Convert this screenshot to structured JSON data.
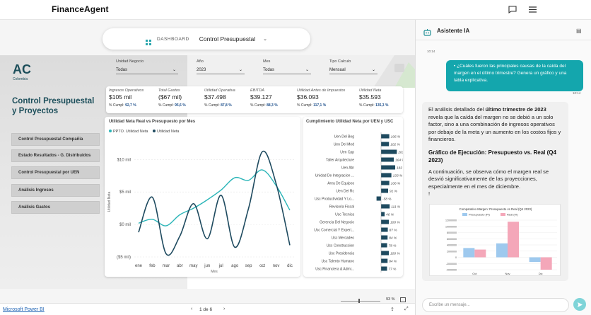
{
  "app": {
    "brand": "FinanceAgent"
  },
  "header_pill": {
    "section": "DASHBOARD",
    "title": "Control Presupuestal"
  },
  "report": {
    "logo": "AC",
    "logo_sub": "Colombia",
    "title": "Control Presupuestal y Proyectos",
    "nav": [
      "Control Presupuestal Compañia",
      "Estado Resultados - G. Distribuidos",
      "Control Presupuestal por UEN",
      "Análisis Ingresos",
      "Análisis Gastos"
    ],
    "filters": [
      {
        "label": "Unidad Negocio",
        "value": "Todas"
      },
      {
        "label": "Año",
        "value": "2023"
      },
      {
        "label": "Mes",
        "value": "Todas"
      },
      {
        "label": "Tipo Calculo",
        "value": "Mensual"
      }
    ],
    "kpis": [
      {
        "label": "Ingresos Operativos",
        "value": "$105 mil",
        "cumpl_label": "% Cumpl:",
        "cumpl": "92,7 %"
      },
      {
        "label": "Total Gastos",
        "value": "($67 mil)",
        "cumpl_label": "% Cumpl:",
        "cumpl": "95,6 %"
      },
      {
        "label": "Utilidad Operativa",
        "value": "$37.498",
        "cumpl_label": "% Cumpl:",
        "cumpl": "87,8 %"
      },
      {
        "label": "EBITDA",
        "value": "$39.127",
        "cumpl_label": "% Cumpl:",
        "cumpl": "88,3 %"
      },
      {
        "label": "Utilidad Antes de Impuestos",
        "value": "$36.093",
        "cumpl_label": "% Cumpl:",
        "cumpl": "117,1 %"
      },
      {
        "label": "Utilidad Neta",
        "value": "$35.593",
        "cumpl_label": "% Cumpl:",
        "cumpl": "135,3 %"
      }
    ],
    "pager": {
      "powerbi": "Microsoft Power BI",
      "pages": "1 de 6",
      "zoom": "93 %"
    }
  },
  "chart_data": [
    {
      "type": "line",
      "title": "Utilidad Neta Real vs Presupuesto por Mes",
      "legend": [
        "PPTO. Utilidad Neta",
        "Utilidad Neta"
      ],
      "xlabel": "Mes",
      "ylabel": "Utilidad Neta",
      "yticks": [
        "$10 mil",
        "$5 mil",
        "$0 mil",
        "($5 mil)"
      ],
      "ylim": [
        -5,
        12
      ],
      "categories": [
        "ene",
        "feb",
        "mar",
        "abr",
        "may",
        "jun",
        "jul",
        "ago",
        "sep",
        "oct",
        "nov",
        "dic"
      ],
      "series": [
        {
          "name": "PPTO. Utilidad Neta",
          "color": "#2bb5b8",
          "values": [
            0.2,
            0.8,
            -0.2,
            1.5,
            2.5,
            3.8,
            5.3,
            7.2,
            6.8,
            8.4,
            6.0,
            2.2
          ]
        },
        {
          "name": "Utilidad Neta",
          "color": "#1e4a5f",
          "values": [
            -1.2,
            4.2,
            -4.5,
            -1.8,
            3.2,
            -2.2,
            4.5,
            -3.5,
            2.5,
            11.2,
            6.3,
            -3.2
          ]
        }
      ]
    },
    {
      "type": "bar",
      "title": "Cumplimiento Utilidad Neta por UEN y USC",
      "categories": [
        "Uen Del Bog",
        "Uen Del Med",
        "Uen Cpp",
        "Taller Arquitecture",
        "Uen Abr",
        "Unidad De Integracion ...",
        "Area De Equipos",
        "Uen Del Rc",
        "Usc Productividad Y Lo...",
        "Revisoria Fiscal",
        "Usc Tecnica",
        "Gerencia Del Negocio",
        "Usc Comercial Y Experi...",
        "Usc Mercadeo",
        "Usc Construccion",
        "Usc Presidencia",
        "Usc Talento Humano",
        "Usc Financiera & Admi..."
      ],
      "value_labels": [
        "106 %",
        "102 %",
        "203 %",
        "164 %",
        "182 %",
        "133 %",
        "106 %",
        "91 %",
        "-58 %",
        "111 %",
        "46 %",
        "100 %",
        "87 %",
        "84 %",
        "78 %",
        "100 %",
        "84 %",
        "77 %"
      ],
      "values": [
        106,
        102,
        203,
        164,
        182,
        133,
        106,
        91,
        -58,
        111,
        46,
        100,
        87,
        84,
        78,
        100,
        84,
        77
      ]
    }
  ],
  "assistant": {
    "title": "Asistente IA",
    "t1": "10:14",
    "user_msg": "¿Cuáles fueron las principales causas de la caída del margen en el último trimestre? Genera un gráfico y una tabla explicativa.",
    "t2": "10:14",
    "ai_intro_a": "El análisis detallado del ",
    "ai_intro_b": "último trimestre de 2023",
    "ai_intro_c": " revela que la caída del margen no se debió a un solo factor, sino a una combinación de ingresos operativos por debajo de la meta y un aumento en los costos fijos y financieros.",
    "ai_heading": "Gráfico de Ejecución: Presupuesto vs. Real (Q4 2023)",
    "ai_text2": "A continuación, se observa cómo el margen real se desvió significativamente de las proyecciones, especialmente en el mes de diciembre.",
    "ai_mark": "!",
    "mini_chart": {
      "title": "Comparativo Margen: Presupuesto vs Real (Q4 2023)",
      "legend": [
        "Presupuesto (Pl)",
        "Real (Vl)"
      ],
      "categories": [
        "Oct",
        "Nov",
        "Dic"
      ],
      "yticks": [
        "12000000",
        "10000000",
        "8000000",
        "6000000",
        "4000000",
        "2000000",
        "0",
        "-2000000",
        "-4000000"
      ],
      "budget": [
        3000000,
        4500000,
        -1500000
      ],
      "real": [
        2500000,
        11500000,
        -4000000
      ],
      "colors": {
        "budget": "#9ec9ee",
        "real": "#f4a7b9"
      }
    },
    "input_placeholder": "Escribe un mensaje..."
  }
}
